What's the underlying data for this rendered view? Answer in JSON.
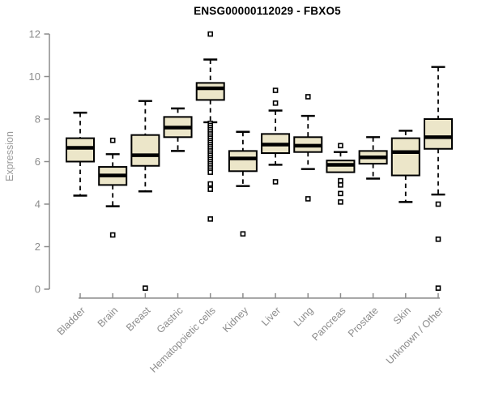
{
  "chart_data": {
    "type": "boxplot",
    "title": "ENSG00000112029 - FBXO5",
    "ylabel": "Expression",
    "ylim": [
      0,
      12
    ],
    "yticks": [
      0,
      2,
      4,
      6,
      8,
      10,
      12
    ],
    "grid": false,
    "legend": "none",
    "colors": {
      "box_fill": "#ece6c9",
      "box_stroke": "#000000",
      "median": "#000000",
      "whisker": "#000000",
      "axis": "#8c8c8c",
      "tick_label": "#8c8c8c",
      "title": "#000000",
      "background": "#ffffff"
    },
    "categories": [
      "Bladder",
      "Brain",
      "Breast",
      "Gastric",
      "Hematopoietic cells",
      "Kidney",
      "Liver",
      "Lung",
      "Pancreas",
      "Prostate",
      "Skin",
      "Unknown / Other"
    ],
    "series": [
      {
        "label": "Bladder",
        "low": 4.4,
        "q1": 6.0,
        "median": 6.65,
        "q3": 7.1,
        "high": 8.3,
        "outliers": []
      },
      {
        "label": "Brain",
        "low": 3.9,
        "q1": 4.9,
        "median": 5.35,
        "q3": 5.75,
        "high": 6.35,
        "outliers": [
          7.0,
          2.55
        ]
      },
      {
        "label": "Breast",
        "low": 4.6,
        "q1": 5.8,
        "median": 6.3,
        "q3": 7.25,
        "high": 8.85,
        "outliers": [
          0.05
        ]
      },
      {
        "label": "Gastric",
        "low": 6.5,
        "q1": 7.15,
        "median": 7.6,
        "q3": 8.1,
        "high": 8.5,
        "outliers": []
      },
      {
        "label": "Hematopoietic cells",
        "low": 7.85,
        "q1": 8.9,
        "median": 9.45,
        "q3": 9.7,
        "high": 10.8,
        "outliers": [
          12.0,
          7.8,
          7.7,
          7.6,
          7.5,
          7.4,
          7.3,
          7.2,
          7.1,
          7.0,
          6.9,
          6.8,
          6.7,
          6.6,
          6.5,
          6.4,
          6.3,
          6.2,
          6.1,
          6.0,
          5.9,
          5.8,
          5.7,
          5.6,
          5.5,
          4.95,
          4.7,
          3.3
        ]
      },
      {
        "label": "Kidney",
        "low": 4.85,
        "q1": 5.55,
        "median": 6.15,
        "q3": 6.5,
        "high": 7.4,
        "outliers": [
          2.6
        ]
      },
      {
        "label": "Liver",
        "low": 5.85,
        "q1": 6.4,
        "median": 6.8,
        "q3": 7.3,
        "high": 8.4,
        "outliers": [
          9.35,
          8.75,
          5.05
        ]
      },
      {
        "label": "Lung",
        "low": 5.65,
        "q1": 6.45,
        "median": 6.75,
        "q3": 7.15,
        "high": 8.15,
        "outliers": [
          9.05,
          4.25
        ]
      },
      {
        "label": "Pancreas",
        "low": 5.5,
        "q1": 5.5,
        "median": 5.85,
        "q3": 6.05,
        "high": 6.45,
        "outliers": [
          6.75,
          5.1,
          4.9,
          4.5,
          4.1
        ]
      },
      {
        "label": "Prostate",
        "low": 5.2,
        "q1": 5.9,
        "median": 6.2,
        "q3": 6.5,
        "high": 7.15,
        "outliers": []
      },
      {
        "label": "Skin",
        "low": 4.1,
        "q1": 5.35,
        "median": 6.45,
        "q3": 7.1,
        "high": 7.45,
        "outliers": []
      },
      {
        "label": "Unknown / Other",
        "low": 4.45,
        "q1": 6.6,
        "median": 7.15,
        "q3": 8.0,
        "high": 10.45,
        "outliers": [
          4.0,
          2.35,
          0.05
        ]
      }
    ]
  }
}
